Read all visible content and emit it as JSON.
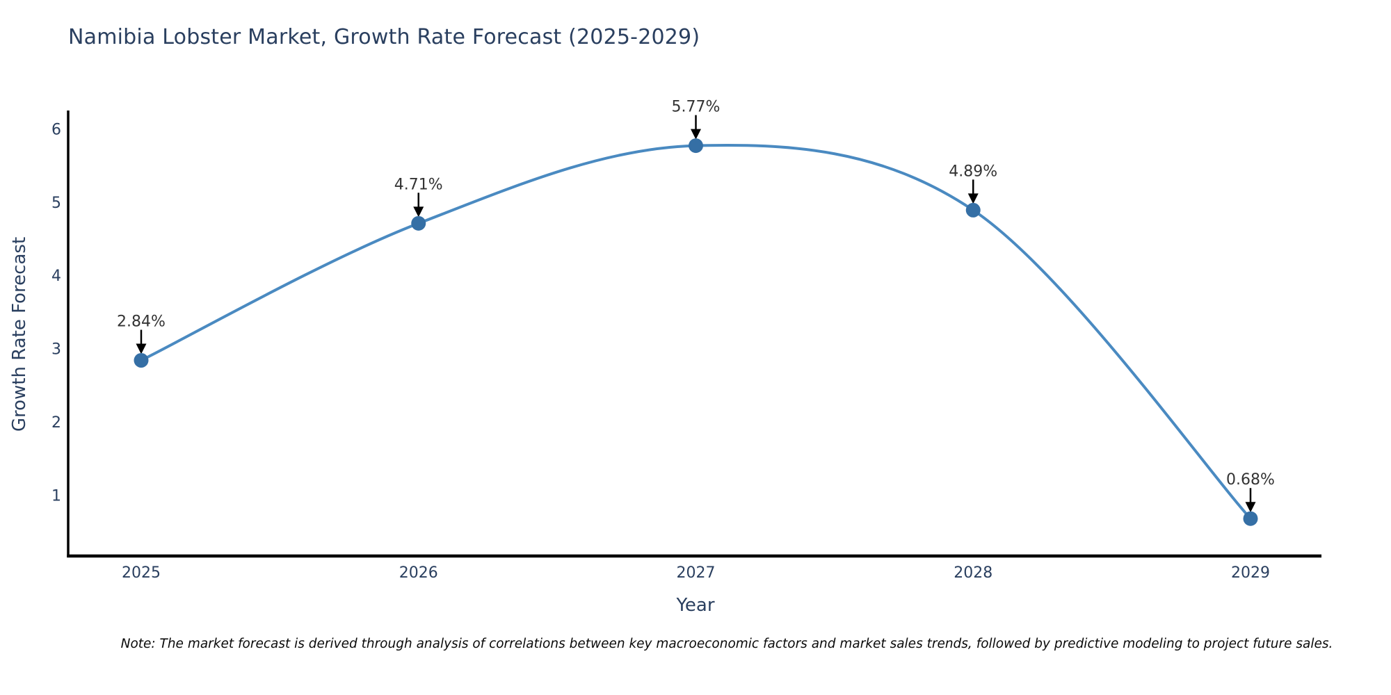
{
  "title": {
    "text": "Namibia Lobster Market, Growth Rate Forecast (2025-2029)",
    "color": "#2a3f5f"
  },
  "note": {
    "text": "Note: The market forecast is derived through analysis of correlations between key macroeconomic factors and market sales trends, followed by predictive modeling to project future sales."
  },
  "chart_data": {
    "type": "line",
    "title": "Namibia Lobster Market, Growth Rate Forecast (2025-2029)",
    "xlabel": "Year",
    "ylabel": "Growth Rate Forecast",
    "categories": [
      "2025",
      "2026",
      "2027",
      "2028",
      "2029"
    ],
    "values": [
      2.84,
      4.71,
      5.77,
      4.89,
      0.68
    ],
    "point_labels": [
      "2.84%",
      "4.71%",
      "5.77%",
      "4.89%",
      "0.68%"
    ],
    "yticks": [
      1,
      2,
      3,
      4,
      5,
      6
    ],
    "ylim": [
      0.17,
      6.25
    ],
    "line_shape": "spline",
    "grid": false,
    "legend": "none",
    "colors": {
      "line": "#4a8ac1",
      "marker": "#356fa5",
      "axis": "#000000",
      "tick_labels": "#2a3f5f",
      "annotation_text": "#333333",
      "annotation_arrow": "#000000",
      "background": "#ffffff"
    }
  }
}
